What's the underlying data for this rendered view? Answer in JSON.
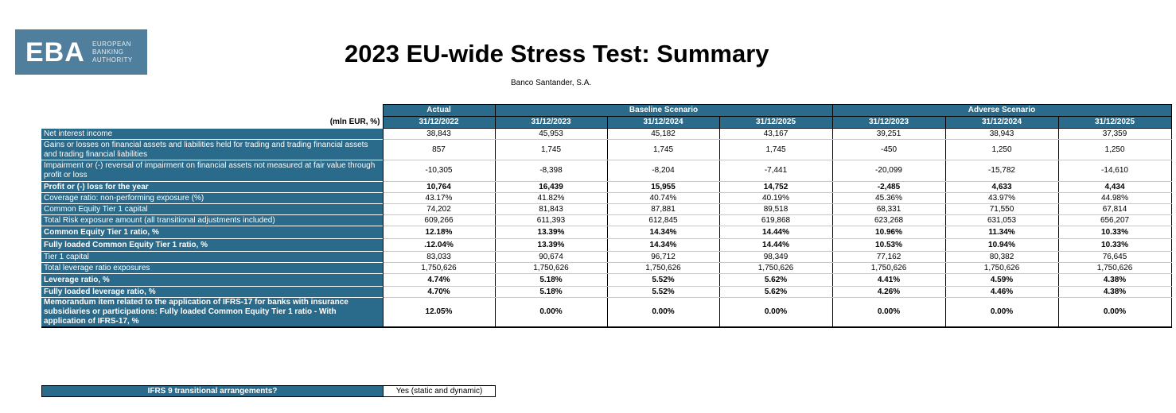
{
  "logo": {
    "mark": "EBA",
    "line1": "EUROPEAN",
    "line2": "BANKING",
    "line3": "AUTHORITY"
  },
  "title": "2023 EU-wide Stress Test: Summary",
  "bank": "Banco Santander, S.A.",
  "table": {
    "unit_label": "(mln EUR, %)",
    "group_headers": [
      "Actual",
      "Baseline Scenario",
      "Adverse Scenario"
    ],
    "dates": [
      "31/12/2022",
      "31/12/2023",
      "31/12/2024",
      "31/12/2025",
      "31/12/2023",
      "31/12/2024",
      "31/12/2025"
    ],
    "rows": [
      {
        "label": "Net interest income",
        "values": [
          "38,843",
          "45,953",
          "45,182",
          "43,167",
          "39,251",
          "38,943",
          "37,359"
        ]
      },
      {
        "label": "Gains or losses on financial assets and liabilities held for trading and trading financial assets and trading financial liabilities",
        "values": [
          "857",
          "1,745",
          "1,745",
          "1,745",
          "-450",
          "1,250",
          "1,250"
        ]
      },
      {
        "label": "Impairment or (-) reversal of impairment on financial assets not measured at fair value through profit or loss",
        "values": [
          "-10,305",
          "-8,398",
          "-8,204",
          "-7,441",
          "-20,099",
          "-15,782",
          "-14,610"
        ]
      },
      {
        "label": "Profit or (-) loss for the year",
        "values": [
          "10,764",
          "16,439",
          "15,955",
          "14,752",
          "-2,485",
          "4,633",
          "4,434"
        ]
      },
      {
        "label": "Coverage ratio: non-performing exposure (%)",
        "values": [
          "43.17%",
          "41.82%",
          "40.74%",
          "40.19%",
          "45.36%",
          "43.97%",
          "44.98%"
        ]
      },
      {
        "label": "Common Equity Tier 1 capital",
        "values": [
          "74,202",
          "81,843",
          "87,881",
          "89,518",
          "68,331",
          "71,550",
          "67,814"
        ]
      },
      {
        "label": "Total Risk exposure amount (all transitional adjustments included)",
        "values": [
          "609,266",
          "611,393",
          "612,845",
          "619,868",
          "623,268",
          "631,053",
          "656,207"
        ]
      },
      {
        "label": "Common Equity Tier 1 ratio, %",
        "values": [
          "12.18%",
          "13.39%",
          "14.34%",
          "14.44%",
          "10.96%",
          "11.34%",
          "10.33%"
        ]
      },
      {
        "label": "Fully loaded Common Equity Tier 1 ratio, %",
        "values": [
          ".12.04%",
          "13.39%",
          "14.34%",
          "14.44%",
          "10.53%",
          "10.94%",
          "10.33%"
        ]
      },
      {
        "label": "Tier 1 capital",
        "values": [
          "83,033",
          "90,674",
          "96,712",
          "98,349",
          "77,162",
          "80,382",
          "76,645"
        ]
      },
      {
        "label": "Total leverage ratio exposures",
        "values": [
          "1,750,626",
          "1,750,626",
          "1,750,626",
          "1,750,626",
          "1,750,626",
          "1,750,626",
          "1,750,626"
        ]
      },
      {
        "label": "Leverage ratio, %",
        "values": [
          "4.74%",
          "5.18%",
          "5.52%",
          "5.62%",
          "4.41%",
          "4.59%",
          "4.38%"
        ]
      },
      {
        "label": "Fully loaded leverage ratio, %",
        "values": [
          "4.70%",
          "5.18%",
          "5.52%",
          "5.62%",
          "4.26%",
          "4.46%",
          "4.38%"
        ]
      },
      {
        "label": "Memorandum item related to the application of IFRS-17 for banks with insurance subsidiaries or participations: Fully loaded Common Equity Tier 1 ratio - With application of IFRS-17, %",
        "values": [
          "12.05%",
          "0.00%",
          "0.00%",
          "0.00%",
          "0.00%",
          "0.00%",
          "0.00%"
        ]
      }
    ]
  },
  "ifrs9": {
    "question": "IFRS 9 transitional arrangements?",
    "answer": "Yes (static and dynamic)"
  }
}
